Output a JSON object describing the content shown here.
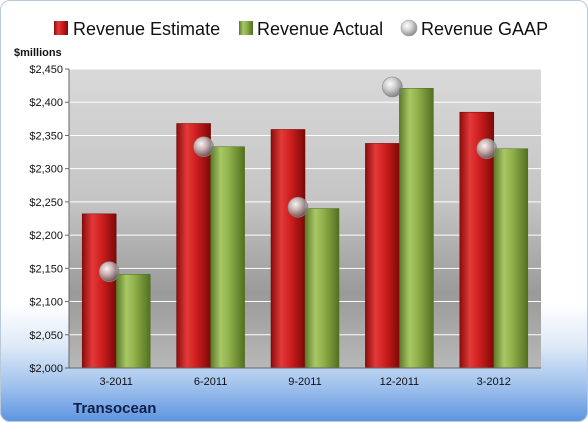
{
  "chart_data": {
    "type": "bar",
    "unit_label": "$millions",
    "company": "Transocean",
    "categories": [
      "3-2011",
      "6-2011",
      "9-2011",
      "12-2011",
      "3-2012"
    ],
    "series": [
      {
        "name": "Revenue Estimate",
        "kind": "bar",
        "color": "#d42020",
        "values": [
          2232,
          2368,
          2359,
          2338,
          2385
        ]
      },
      {
        "name": "Revenue Actual",
        "kind": "bar",
        "color": "#8fb04a",
        "values": [
          2141,
          2333,
          2240,
          2421,
          2330
        ]
      },
      {
        "name": "Revenue GAAP",
        "kind": "marker",
        "color": "#b8b8b8",
        "values": [
          2145,
          2333,
          2242,
          2423,
          2330
        ]
      }
    ],
    "ylim": [
      2000,
      2450
    ],
    "yticks": [
      2000,
      2050,
      2100,
      2150,
      2200,
      2250,
      2300,
      2350,
      2400,
      2450
    ],
    "ytick_labels": [
      "$2,000",
      "$2,050",
      "$2,100",
      "$2,150",
      "$2,200",
      "$2,250",
      "$2,300",
      "$2,350",
      "$2,400",
      "$2,450"
    ],
    "grid": true,
    "legend_position": "top"
  }
}
